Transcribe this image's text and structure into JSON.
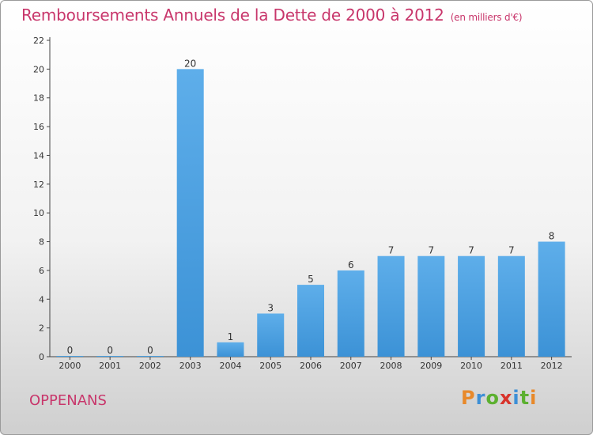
{
  "title": "Remboursements Annuels de la Dette de 2000 à 2012",
  "subtitle": "(en milliers d'€)",
  "location": "OPPENANS",
  "brand": {
    "letters": [
      "P",
      "r",
      "o",
      "x",
      "i",
      "t",
      "i"
    ],
    "colors": [
      "#e8892a",
      "#3d8fd6",
      "#5cb030",
      "#d8342c",
      "#3d8fd6",
      "#5cb030",
      "#e8892a"
    ]
  },
  "chart_data": {
    "type": "bar",
    "categories": [
      "2000",
      "2001",
      "2002",
      "2003",
      "2004",
      "2005",
      "2006",
      "2007",
      "2008",
      "2009",
      "2010",
      "2011",
      "2012"
    ],
    "values": [
      0,
      0,
      0,
      20,
      1,
      3,
      5,
      6,
      7,
      7,
      7,
      7,
      8
    ],
    "ylim": [
      0,
      22
    ],
    "yticks": [
      0,
      2,
      4,
      6,
      8,
      10,
      12,
      14,
      16,
      18,
      20,
      22
    ],
    "grid": false,
    "bar_color": "#3c92d6"
  }
}
